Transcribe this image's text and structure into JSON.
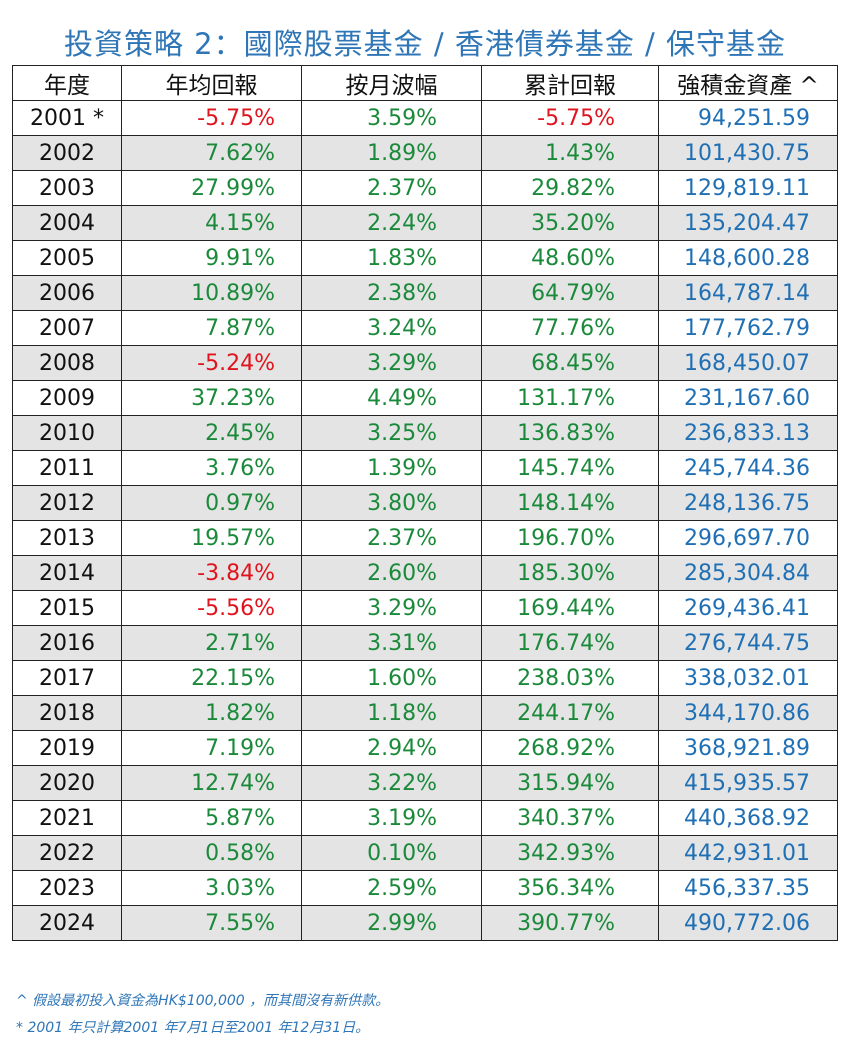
{
  "title": "投資策略 2：國際股票基金 / 香港債券基金  /  保守基金",
  "table": {
    "headers": {
      "year": "年度",
      "annual_return": "年均回報",
      "monthly_volatility": "按月波幅",
      "cumulative_return": "累計回報",
      "mpf_assets": "強積金資產 ^"
    },
    "rows": [
      {
        "year": "2001 *",
        "annual_return": "-5.75%",
        "monthly_volatility": "3.59%",
        "cumulative_return": "-5.75%",
        "mpf_assets": "94,251.59"
      },
      {
        "year": "2002",
        "annual_return": "7.62%",
        "monthly_volatility": "1.89%",
        "cumulative_return": "1.43%",
        "mpf_assets": "101,430.75"
      },
      {
        "year": "2003",
        "annual_return": "27.99%",
        "monthly_volatility": "2.37%",
        "cumulative_return": "29.82%",
        "mpf_assets": "129,819.11"
      },
      {
        "year": "2004",
        "annual_return": "4.15%",
        "monthly_volatility": "2.24%",
        "cumulative_return": "35.20%",
        "mpf_assets": "135,204.47"
      },
      {
        "year": "2005",
        "annual_return": "9.91%",
        "monthly_volatility": "1.83%",
        "cumulative_return": "48.60%",
        "mpf_assets": "148,600.28"
      },
      {
        "year": "2006",
        "annual_return": "10.89%",
        "monthly_volatility": "2.38%",
        "cumulative_return": "64.79%",
        "mpf_assets": "164,787.14"
      },
      {
        "year": "2007",
        "annual_return": "7.87%",
        "monthly_volatility": "3.24%",
        "cumulative_return": "77.76%",
        "mpf_assets": "177,762.79"
      },
      {
        "year": "2008",
        "annual_return": "-5.24%",
        "monthly_volatility": "3.29%",
        "cumulative_return": "68.45%",
        "mpf_assets": "168,450.07"
      },
      {
        "year": "2009",
        "annual_return": "37.23%",
        "monthly_volatility": "4.49%",
        "cumulative_return": "131.17%",
        "mpf_assets": "231,167.60"
      },
      {
        "year": "2010",
        "annual_return": "2.45%",
        "monthly_volatility": "3.25%",
        "cumulative_return": "136.83%",
        "mpf_assets": "236,833.13"
      },
      {
        "year": "2011",
        "annual_return": "3.76%",
        "monthly_volatility": "1.39%",
        "cumulative_return": "145.74%",
        "mpf_assets": "245,744.36"
      },
      {
        "year": "2012",
        "annual_return": "0.97%",
        "monthly_volatility": "3.80%",
        "cumulative_return": "148.14%",
        "mpf_assets": "248,136.75"
      },
      {
        "year": "2013",
        "annual_return": "19.57%",
        "monthly_volatility": "2.37%",
        "cumulative_return": "196.70%",
        "mpf_assets": "296,697.70"
      },
      {
        "year": "2014",
        "annual_return": "-3.84%",
        "monthly_volatility": "2.60%",
        "cumulative_return": "185.30%",
        "mpf_assets": "285,304.84"
      },
      {
        "year": "2015",
        "annual_return": "-5.56%",
        "monthly_volatility": "3.29%",
        "cumulative_return": "169.44%",
        "mpf_assets": "269,436.41"
      },
      {
        "year": "2016",
        "annual_return": "2.71%",
        "monthly_volatility": "3.31%",
        "cumulative_return": "176.74%",
        "mpf_assets": "276,744.75"
      },
      {
        "year": "2017",
        "annual_return": "22.15%",
        "monthly_volatility": "1.60%",
        "cumulative_return": "238.03%",
        "mpf_assets": "338,032.01"
      },
      {
        "year": "2018",
        "annual_return": "1.82%",
        "monthly_volatility": "1.18%",
        "cumulative_return": "244.17%",
        "mpf_assets": "344,170.86"
      },
      {
        "year": "2019",
        "annual_return": "7.19%",
        "monthly_volatility": "2.94%",
        "cumulative_return": "268.92%",
        "mpf_assets": "368,921.89"
      },
      {
        "year": "2020",
        "annual_return": "12.74%",
        "monthly_volatility": "3.22%",
        "cumulative_return": "315.94%",
        "mpf_assets": "415,935.57"
      },
      {
        "year": "2021",
        "annual_return": "5.87%",
        "monthly_volatility": "3.19%",
        "cumulative_return": "340.37%",
        "mpf_assets": "440,368.92"
      },
      {
        "year": "2022",
        "annual_return": "0.58%",
        "monthly_volatility": "0.10%",
        "cumulative_return": "342.93%",
        "mpf_assets": "442,931.01"
      },
      {
        "year": "2023",
        "annual_return": "3.03%",
        "monthly_volatility": "2.59%",
        "cumulative_return": "356.34%",
        "mpf_assets": "456,337.35"
      },
      {
        "year": "2024",
        "annual_return": "7.55%",
        "monthly_volatility": "2.99%",
        "cumulative_return": "390.77%",
        "mpf_assets": "490,772.06"
      }
    ]
  },
  "footnotes": [
    "^ 假設最初投入資金為HK$100,000 ，而其間沒有新供款。",
    "* 2001 年只計算2001 年7月1日至2001 年12月31日。"
  ],
  "colors": {
    "title": "#2f76b7",
    "positive": "#1a8a3a",
    "negative": "#e0141e",
    "assets": "#1f6fb4",
    "row_alt_bg": "#e4e4e4",
    "footnote": "#2f76b7"
  }
}
